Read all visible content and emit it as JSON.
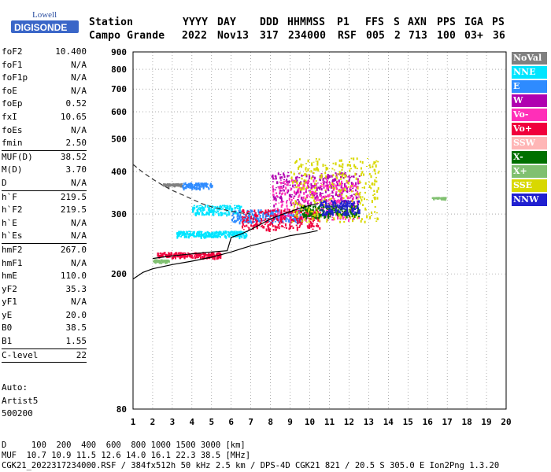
{
  "logo": {
    "line1": "Lowell",
    "line2": "DIGISONDE"
  },
  "header": {
    "labels": [
      "Station",
      "YYYY",
      "DAY",
      "DDD",
      "HHMMSS",
      "P1",
      "FFS",
      "S",
      "AXN",
      "PPS",
      "IGA",
      "PS"
    ],
    "values": [
      "Campo Grande",
      "2022",
      "Nov13",
      "317",
      "234000",
      "RSF",
      "005",
      "2",
      "713",
      "100",
      "03+",
      "36"
    ]
  },
  "parameters": [
    [
      [
        "foF2",
        "10.400"
      ],
      [
        "foF1",
        "N/A"
      ],
      [
        "foF1p",
        "N/A"
      ],
      [
        "foE",
        "N/A"
      ],
      [
        "foEp",
        "0.52"
      ],
      [
        "fxI",
        "10.65"
      ],
      [
        "foEs",
        "N/A"
      ],
      [
        "fmin",
        "2.50"
      ]
    ],
    [
      [
        "MUF(D)",
        "38.52"
      ],
      [
        "M(D)",
        "3.70"
      ],
      [
        "D",
        "N/A"
      ]
    ],
    [
      [
        "h`F",
        "219.5"
      ],
      [
        "h`F2",
        "219.5"
      ],
      [
        "h`E",
        "N/A"
      ],
      [
        "h`Es",
        "N/A"
      ]
    ],
    [
      [
        "hmF2",
        "267.0"
      ],
      [
        "hmF1",
        "N/A"
      ],
      [
        "hmE",
        "110.0"
      ],
      [
        "yF2",
        "35.3"
      ],
      [
        "yF1",
        "N/A"
      ],
      [
        "yE",
        "20.0"
      ],
      [
        "B0",
        "38.5"
      ],
      [
        "B1",
        "1.55"
      ]
    ],
    [
      [
        "C-level",
        "22"
      ]
    ]
  ],
  "auto_block": [
    "Auto:",
    "Artist5",
    "500200"
  ],
  "legend": [
    {
      "label": "NoVal",
      "color": "#808080"
    },
    {
      "label": "NNE",
      "color": "#00e5ff"
    },
    {
      "label": "E",
      "color": "#2e8bff"
    },
    {
      "label": "W",
      "color": "#b000b0"
    },
    {
      "label": "Vo-",
      "color": "#ff2fb8"
    },
    {
      "label": "Vo+",
      "color": "#f0003c"
    },
    {
      "label": "SSW",
      "color": "#ffb6b6"
    },
    {
      "label": "X-",
      "color": "#007000"
    },
    {
      "label": "X+",
      "color": "#80c070"
    },
    {
      "label": "SSE",
      "color": "#d8d800"
    },
    {
      "label": "NNW",
      "color": "#2020d0"
    }
  ],
  "footer": {
    "distance_line": "D     100  200  400  600  800 1000 1500 3000 [km]",
    "muf_line": "MUF  10.7 10.9 11.5 12.6 14.0 16.1 22.3 38.5 [MHz]",
    "file_line": "CGK21_2022317234000.RSF / 384fx512h 50 kHz 2.5 km / DPS-4D CGK21 821 / 20.5 S 305.0 E Ion2Png 1.3.20"
  },
  "chart_data": {
    "type": "scatter",
    "title": "",
    "xlabel": "",
    "ylabel": "",
    "xlim": [
      1,
      20
    ],
    "ylim": [
      80,
      900
    ],
    "y_log_scale": true,
    "x_ticks": [
      1,
      2,
      3,
      4,
      5,
      6,
      7,
      8,
      9,
      10,
      11,
      12,
      13,
      14,
      15,
      16,
      17,
      18,
      19,
      20
    ],
    "y_ticks": [
      80,
      200,
      300,
      400,
      500,
      600,
      700,
      800,
      900
    ],
    "grid": true,
    "curves": [
      {
        "name": "trace",
        "style": "solid",
        "x": [
          1.0,
          1.5,
          2.0,
          3.0,
          4.0,
          5.0,
          6.0,
          6.5,
          7.0,
          7.5,
          8.0,
          8.5,
          9.0,
          9.5,
          10.0,
          10.4
        ],
        "y": [
          193,
          202,
          207,
          213,
          218,
          224,
          232,
          237,
          242,
          246,
          250,
          255,
          259,
          262,
          265,
          268
        ]
      },
      {
        "name": "profile",
        "style": "solid",
        "x": [
          2.0,
          3.0,
          4.0,
          5.0,
          5.8,
          6.0,
          6.5,
          7.0,
          7.5,
          8.0,
          8.5,
          9.0,
          9.5,
          10.0,
          10.4
        ],
        "y": [
          222,
          226,
          229,
          232,
          234,
          256,
          262,
          270,
          280,
          290,
          298,
          305,
          312,
          318,
          322
        ]
      },
      {
        "name": "topside",
        "style": "dashed",
        "x": [
          1.0,
          1.5,
          2.0,
          2.5,
          3.0,
          3.5,
          4.0,
          4.5,
          5.0,
          5.5,
          6.0,
          6.5,
          7.0
        ],
        "y": [
          420,
          398,
          380,
          365,
          352,
          342,
          332,
          322,
          315,
          310,
          306,
          302,
          300
        ]
      }
    ],
    "clusters": [
      {
        "series": "NoVal",
        "x": [
          2.5,
          3.5
        ],
        "y": [
          365,
          370
        ]
      },
      {
        "series": "NNE",
        "x": [
          4.0,
          6.5
        ],
        "y": [
          300,
          320
        ]
      },
      {
        "series": "NNE",
        "x": [
          3.2,
          6.8
        ],
        "y": [
          258,
          268
        ]
      },
      {
        "series": "E",
        "x": [
          3.5,
          5.0
        ],
        "y": [
          358,
          372
        ]
      },
      {
        "series": "E",
        "x": [
          6.0,
          9.5
        ],
        "y": [
          285,
          310
        ]
      },
      {
        "series": "W",
        "x": [
          8.0,
          12.5
        ],
        "y": [
          320,
          400
        ]
      },
      {
        "series": "Vo-",
        "x": [
          8.0,
          12.5
        ],
        "y": [
          290,
          380
        ]
      },
      {
        "series": "Vo+",
        "x": [
          2.2,
          5.5
        ],
        "y": [
          224,
          232
        ]
      },
      {
        "series": "Vo+",
        "x": [
          6.5,
          10.5
        ],
        "y": [
          270,
          310
        ]
      },
      {
        "series": "X-",
        "x": [
          9.5,
          12.5
        ],
        "y": [
          295,
          320
        ]
      },
      {
        "series": "X+",
        "x": [
          2.0,
          2.8
        ],
        "y": [
          217,
          221
        ]
      },
      {
        "series": "X+",
        "x": [
          16.2,
          16.9
        ],
        "y": [
          335,
          337
        ]
      },
      {
        "series": "SSE",
        "x": [
          9.0,
          13.5
        ],
        "y": [
          285,
          440
        ]
      },
      {
        "series": "NNW",
        "x": [
          10.5,
          12.5
        ],
        "y": [
          300,
          330
        ]
      }
    ]
  }
}
